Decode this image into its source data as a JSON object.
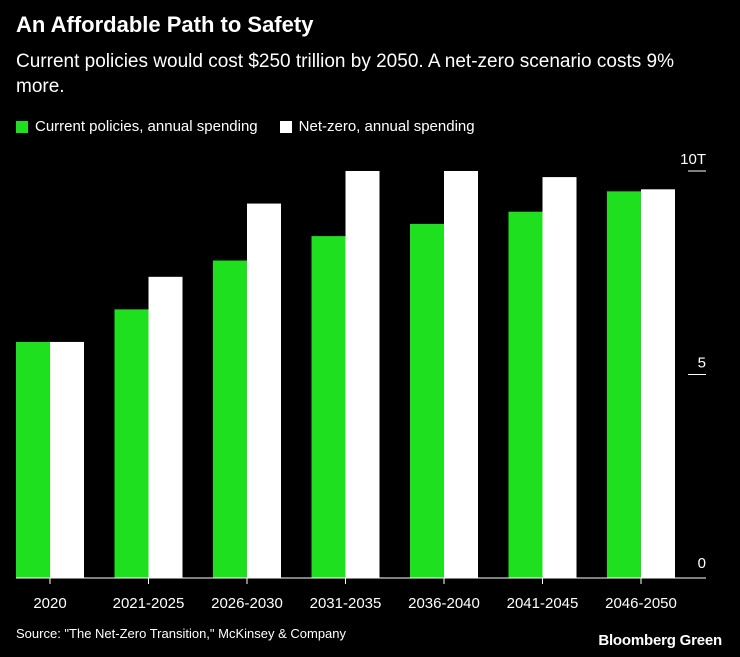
{
  "header": {
    "title": "An Affordable Path to Safety",
    "subtitle": "Current policies would cost $250 trillion by 2050. A net-zero scenario costs 9% more."
  },
  "colors": {
    "current": "#1fe01f",
    "netzero": "#ffffff",
    "background": "#000000"
  },
  "chart_data": {
    "type": "bar",
    "title": "An Affordable Path to Safety",
    "subtitle": "Current policies would cost $250 trillion by 2050. A net-zero scenario costs 9% more.",
    "categories": [
      "2020",
      "2021-2025",
      "2026-2030",
      "2031-2035",
      "2036-2040",
      "2041-2045",
      "2046-2050"
    ],
    "series": [
      {
        "name": "Current policies, annual spending",
        "values": [
          5.8,
          6.6,
          7.8,
          8.4,
          8.7,
          9.0,
          9.5
        ]
      },
      {
        "name": "Net-zero, annual spending",
        "values": [
          5.8,
          7.4,
          9.2,
          10.0,
          10.0,
          9.85,
          9.55
        ]
      }
    ],
    "ylim": [
      0,
      10
    ],
    "yticks": [
      {
        "value": 10,
        "label": "10T"
      },
      {
        "value": 5,
        "label": "5"
      },
      {
        "value": 0,
        "label": "0"
      }
    ],
    "xlabel": "",
    "ylabel": "",
    "grid": false,
    "legend_position": "top-left"
  },
  "footer": {
    "source": "Source: \"The Net-Zero Transition,\" McKinsey & Company",
    "brand": "Bloomberg Green"
  }
}
